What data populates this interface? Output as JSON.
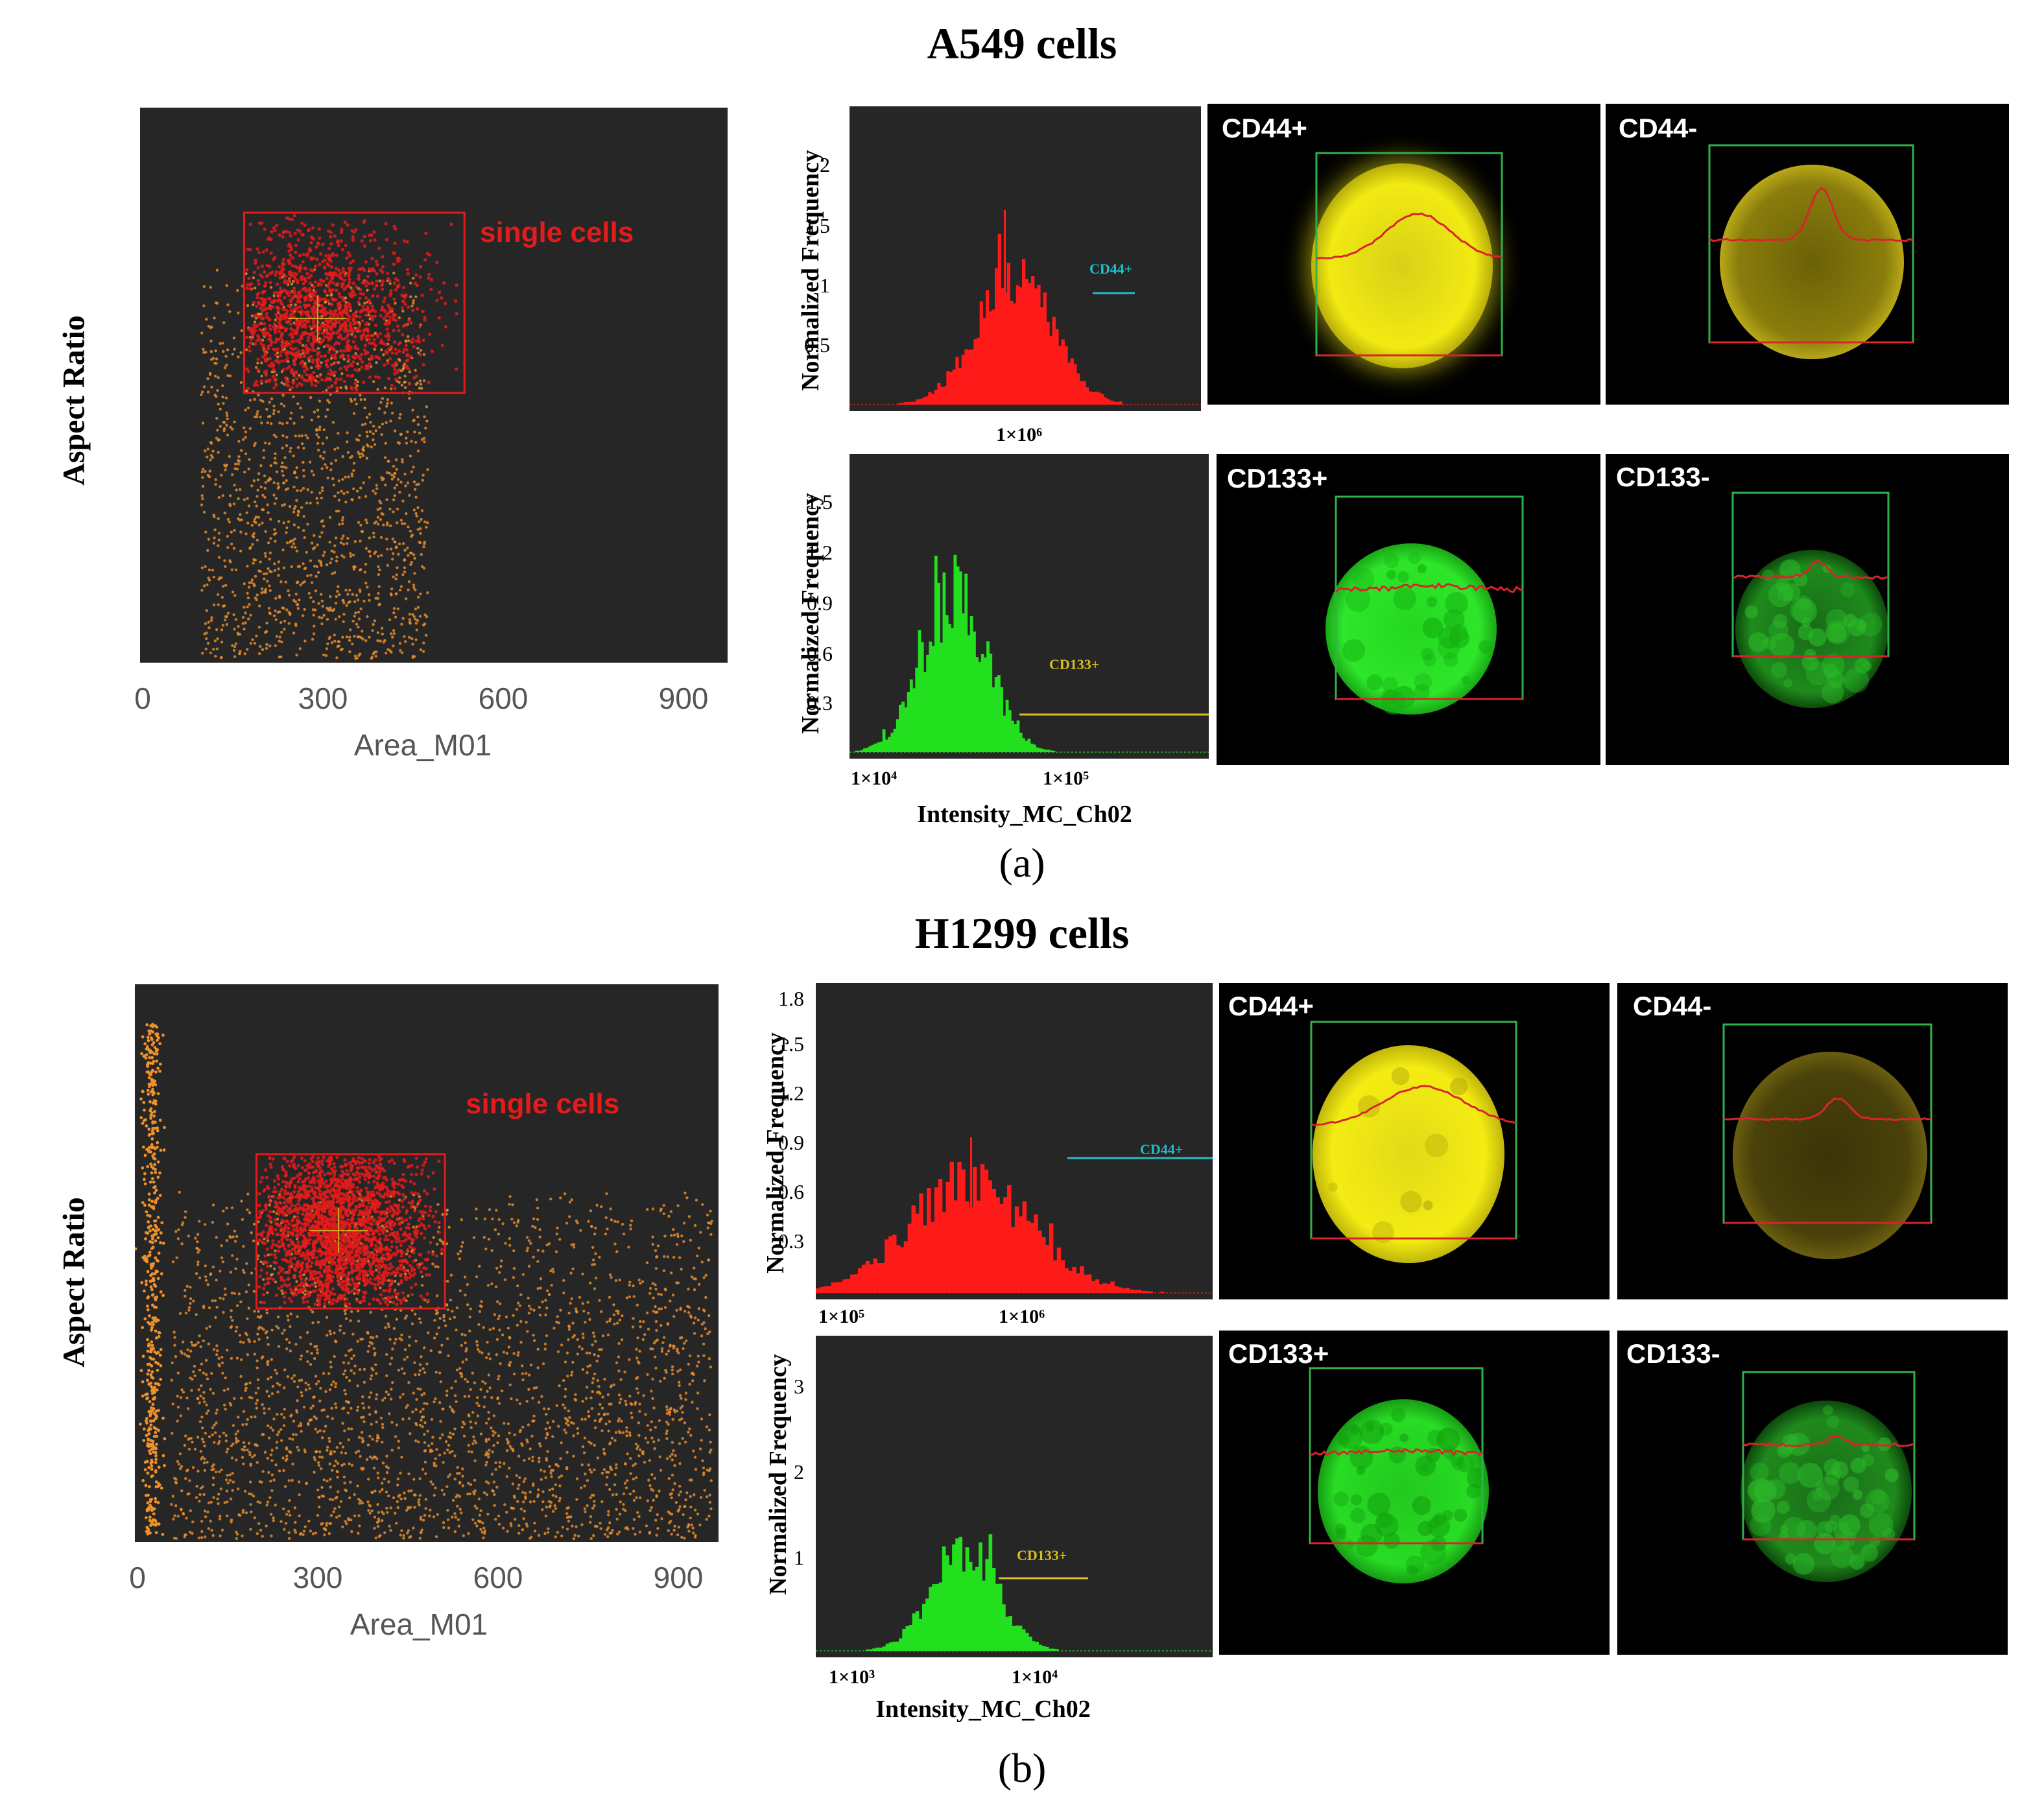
{
  "panels": [
    {
      "id": "a",
      "title": "A549 cells",
      "label": "(a)",
      "scatter": {
        "ylabel": "Aspect Ratio",
        "xlabel": "Area_M01",
        "xticks": [
          "0",
          "300",
          "600",
          "900"
        ],
        "gate_label": "single cells",
        "gate_x": [
          170,
          530
        ],
        "background_color": "#262626",
        "gated_color": "#e31b1b",
        "ungated_color": "#f0902a"
      },
      "hist_cd44": {
        "ylabel": "Normalized Frequency",
        "yticks": [
          "2",
          "1.5",
          "1",
          "0.5"
        ],
        "xticks": [
          "1×10⁶"
        ],
        "xlabel": "",
        "marker": "CD44+",
        "marker_color": "#1fbfc9",
        "fill_color": "#ff1a1a"
      },
      "hist_cd133": {
        "ylabel": "Normalized Frequency",
        "yticks": [
          "1.5",
          "1.2",
          "0.9",
          "0.6",
          "0.3"
        ],
        "xticks": [
          "1×10⁴",
          "1×10⁵"
        ],
        "xlabel": "Intensity_MC_Ch02",
        "marker": "CD133+",
        "marker_color": "#d6c21a",
        "fill_color": "#22e01e"
      },
      "cells": [
        "CD44+",
        "CD44-",
        "CD133+",
        "CD133-"
      ]
    },
    {
      "id": "b",
      "title": "H1299 cells",
      "label": "(b)",
      "scatter": {
        "ylabel": "Aspect Ratio",
        "xlabel": "Area_M01",
        "xticks": [
          "0",
          "300",
          "600",
          "900"
        ],
        "gate_label": "single cells",
        "gate_x": [
          200,
          510
        ],
        "background_color": "#262626",
        "gated_color": "#e31b1b",
        "ungated_color": "#f0902a"
      },
      "hist_cd44": {
        "ylabel": "Normalized Frequency",
        "yticks": [
          "1.8",
          "1.5",
          "1.2",
          "0.9",
          "0.6",
          "0.3"
        ],
        "xticks": [
          "1×10⁵",
          "1×10⁶"
        ],
        "xlabel": "",
        "marker": "CD44+",
        "marker_color": "#1fbfc9",
        "fill_color": "#ff1a1a"
      },
      "hist_cd133": {
        "ylabel": "Normalized Frequency",
        "yticks": [
          "3",
          "2",
          "1"
        ],
        "xticks": [
          "1×10³",
          "1×10⁴"
        ],
        "xlabel": "Intensity_MC_Ch02",
        "marker": "CD133+",
        "marker_color": "#d6c21a",
        "fill_color": "#22e01e"
      },
      "cells": [
        "CD44+",
        "CD44-",
        "CD133+",
        "CD133-"
      ]
    }
  ],
  "chart_data": [
    {
      "type": "scatter",
      "title": "A549 cells",
      "xlabel": "Area_M01",
      "ylabel": "Aspect Ratio",
      "xlim": [
        0,
        960
      ],
      "xticks": [
        0,
        300,
        600,
        900
      ],
      "gate": {
        "name": "single cells",
        "x": [
          170,
          530
        ]
      }
    },
    {
      "type": "bar",
      "ylabel": "Normalized Frequency",
      "yticks": [
        0.5,
        1,
        1.5,
        2
      ],
      "ylim": [
        0,
        2.4
      ],
      "series": [
        {
          "name": "CD44+",
          "peak_x": "1×10⁶",
          "peak_y": 1.3
        }
      ]
    },
    {
      "type": "bar",
      "xlabel": "Intensity_MC_Ch02",
      "ylabel": "Normalized Frequency",
      "yticks": [
        0.3,
        0.6,
        0.9,
        1.2,
        1.5
      ],
      "ylim": [
        0,
        1.8
      ],
      "series": [
        {
          "name": "CD133+",
          "peak_y": 1.05
        }
      ]
    },
    {
      "type": "scatter",
      "title": "H1299 cells",
      "xlabel": "Area_M01",
      "ylabel": "Aspect Ratio",
      "xlim": [
        0,
        960
      ],
      "xticks": [
        0,
        300,
        600,
        900
      ],
      "gate": {
        "name": "single cells",
        "x": [
          200,
          510
        ]
      }
    },
    {
      "type": "bar",
      "ylabel": "Normalized Frequency",
      "yticks": [
        0.3,
        0.6,
        0.9,
        1.2,
        1.5,
        1.8
      ],
      "ylim": [
        0,
        1.95
      ],
      "series": [
        {
          "name": "CD44+",
          "peak_y": 0.95
        }
      ]
    },
    {
      "type": "bar",
      "xlabel": "Intensity_MC_Ch02",
      "ylabel": "Normalized Frequency",
      "yticks": [
        1,
        2,
        3
      ],
      "ylim": [
        0,
        3.7
      ],
      "series": [
        {
          "name": "CD133+",
          "peak_y": 1.3
        }
      ]
    }
  ]
}
